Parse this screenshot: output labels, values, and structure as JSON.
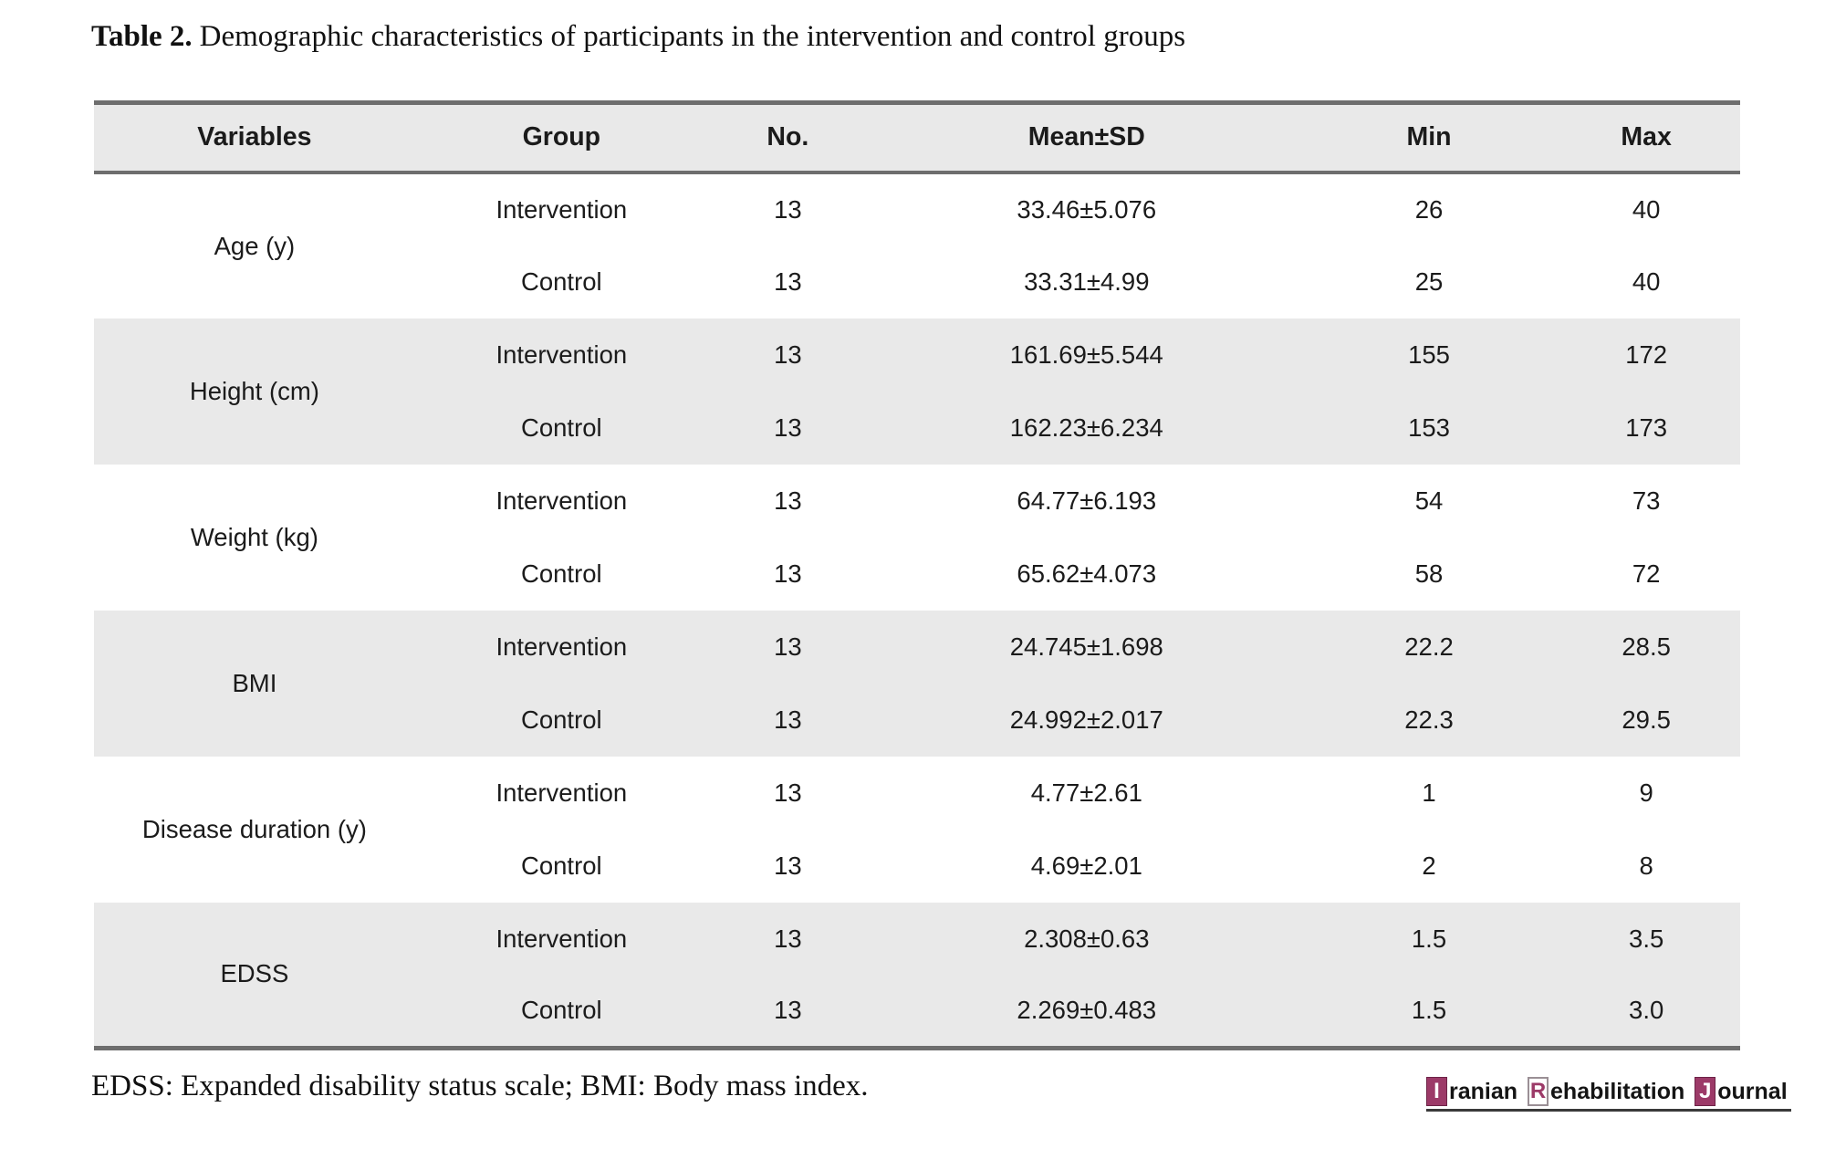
{
  "caption": {
    "label": "Table 2.",
    "text": "Demographic characteristics of participants in the intervention and control groups"
  },
  "table": {
    "columns": [
      "Variables",
      "Group",
      "No.",
      "Mean±SD",
      "Min",
      "Max"
    ],
    "groups": [
      {
        "variable": "Age (y)",
        "shaded": false,
        "rows": [
          {
            "group": "Intervention",
            "no": "13",
            "mean_sd": "33.46±5.076",
            "min": "26",
            "max": "40"
          },
          {
            "group": "Control",
            "no": "13",
            "mean_sd": "33.31±4.99",
            "min": "25",
            "max": "40"
          }
        ]
      },
      {
        "variable": "Height (cm)",
        "shaded": true,
        "rows": [
          {
            "group": "Intervention",
            "no": "13",
            "mean_sd": "161.69±5.544",
            "min": "155",
            "max": "172"
          },
          {
            "group": "Control",
            "no": "13",
            "mean_sd": "162.23±6.234",
            "min": "153",
            "max": "173"
          }
        ]
      },
      {
        "variable": "Weight (kg)",
        "shaded": false,
        "rows": [
          {
            "group": "Intervention",
            "no": "13",
            "mean_sd": "64.77±6.193",
            "min": "54",
            "max": "73"
          },
          {
            "group": "Control",
            "no": "13",
            "mean_sd": "65.62±4.073",
            "min": "58",
            "max": "72"
          }
        ]
      },
      {
        "variable": "BMI",
        "shaded": true,
        "rows": [
          {
            "group": "Intervention",
            "no": "13",
            "mean_sd": "24.745±1.698",
            "min": "22.2",
            "max": "28.5"
          },
          {
            "group": "Control",
            "no": "13",
            "mean_sd": "24.992±2.017",
            "min": "22.3",
            "max": "29.5"
          }
        ]
      },
      {
        "variable": "Disease duration (y)",
        "shaded": false,
        "rows": [
          {
            "group": "Intervention",
            "no": "13",
            "mean_sd": "4.77±2.61",
            "min": "1",
            "max": "9"
          },
          {
            "group": "Control",
            "no": "13",
            "mean_sd": "4.69±2.01",
            "min": "2",
            "max": "8"
          }
        ]
      },
      {
        "variable": "EDSS",
        "shaded": true,
        "rows": [
          {
            "group": "Intervention",
            "no": "13",
            "mean_sd": "2.308±0.63",
            "min": "1.5",
            "max": "3.5"
          },
          {
            "group": "Control",
            "no": "13",
            "mean_sd": "2.269±0.483",
            "min": "1.5",
            "max": "3.0"
          }
        ]
      }
    ]
  },
  "footnote": "EDSS: Expanded disability status scale; BMI: Body mass index.",
  "journal_logo": {
    "word1_initial": "I",
    "word1_rest": "ranian",
    "word2_initial": "R",
    "word2_rest": "ehabilitation",
    "word3_initial": "J",
    "word3_rest": "ournal"
  },
  "colors": {
    "accent": "#9c3a68",
    "row_shade": "#e9e9e9",
    "table_border": "#6e6e6e"
  }
}
